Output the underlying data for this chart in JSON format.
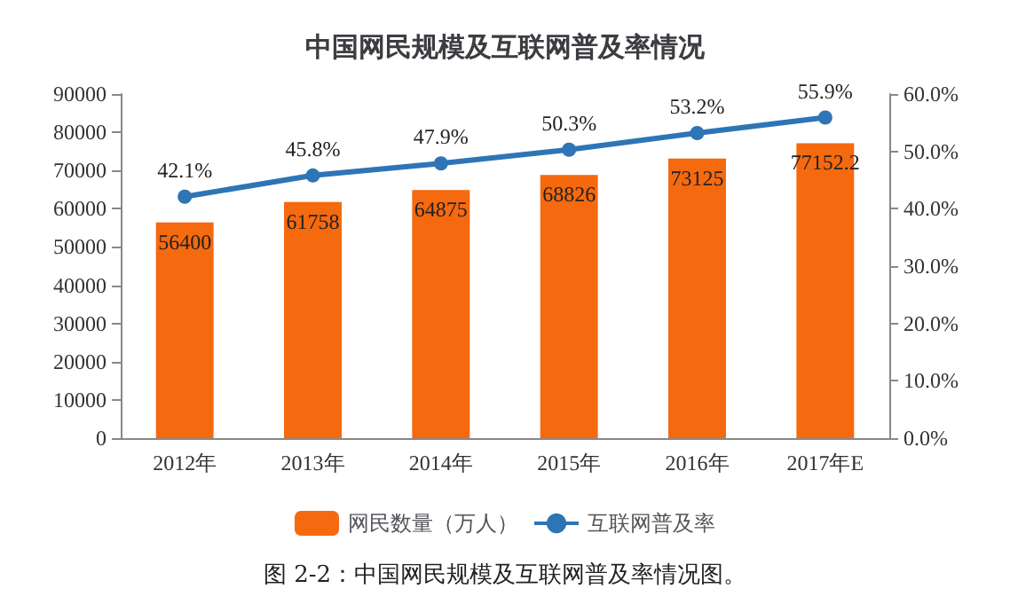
{
  "chart_data": {
    "type": "bar",
    "title": "中国网民规模及互联网普及率情况",
    "categories": [
      "2012年",
      "2013年",
      "2014年",
      "2015年",
      "2016年",
      "2017年E"
    ],
    "series": [
      {
        "name": "网民数量（万人）",
        "color": "#f5690f",
        "values": [
          56400,
          61758,
          64875,
          68826,
          73125,
          77152.2
        ],
        "value_labels": [
          "56400",
          "61758",
          "64875",
          "68826",
          "73125",
          "77152.2"
        ]
      },
      {
        "name": "互联网普及率",
        "type": "line",
        "axis": "y2",
        "color": "#2e75b6",
        "values": [
          42.1,
          45.8,
          47.9,
          50.3,
          53.2,
          55.9
        ],
        "value_labels": [
          "42.1%",
          "45.8%",
          "47.9%",
          "50.3%",
          "53.2%",
          "55.9%"
        ]
      }
    ],
    "ylim": [
      0,
      90000
    ],
    "yticks": [
      0,
      10000,
      20000,
      30000,
      40000,
      50000,
      60000,
      70000,
      80000,
      90000
    ],
    "y2lim": [
      0,
      60
    ],
    "y2ticks": [
      {
        "value": 0,
        "label": "0.0%"
      },
      {
        "value": 10,
        "label": "10.0%"
      },
      {
        "value": 20,
        "label": "20.0%"
      },
      {
        "value": 30,
        "label": "30.0%"
      },
      {
        "value": 40,
        "label": "40.0%"
      },
      {
        "value": 50,
        "label": "50.0%"
      },
      {
        "value": 60,
        "label": "60.0%"
      }
    ],
    "marker": "circle",
    "legend": "bottom",
    "grid": false,
    "annotations": [
      "图 2-2：中国网民规模及互联网普及率情况图。"
    ]
  }
}
